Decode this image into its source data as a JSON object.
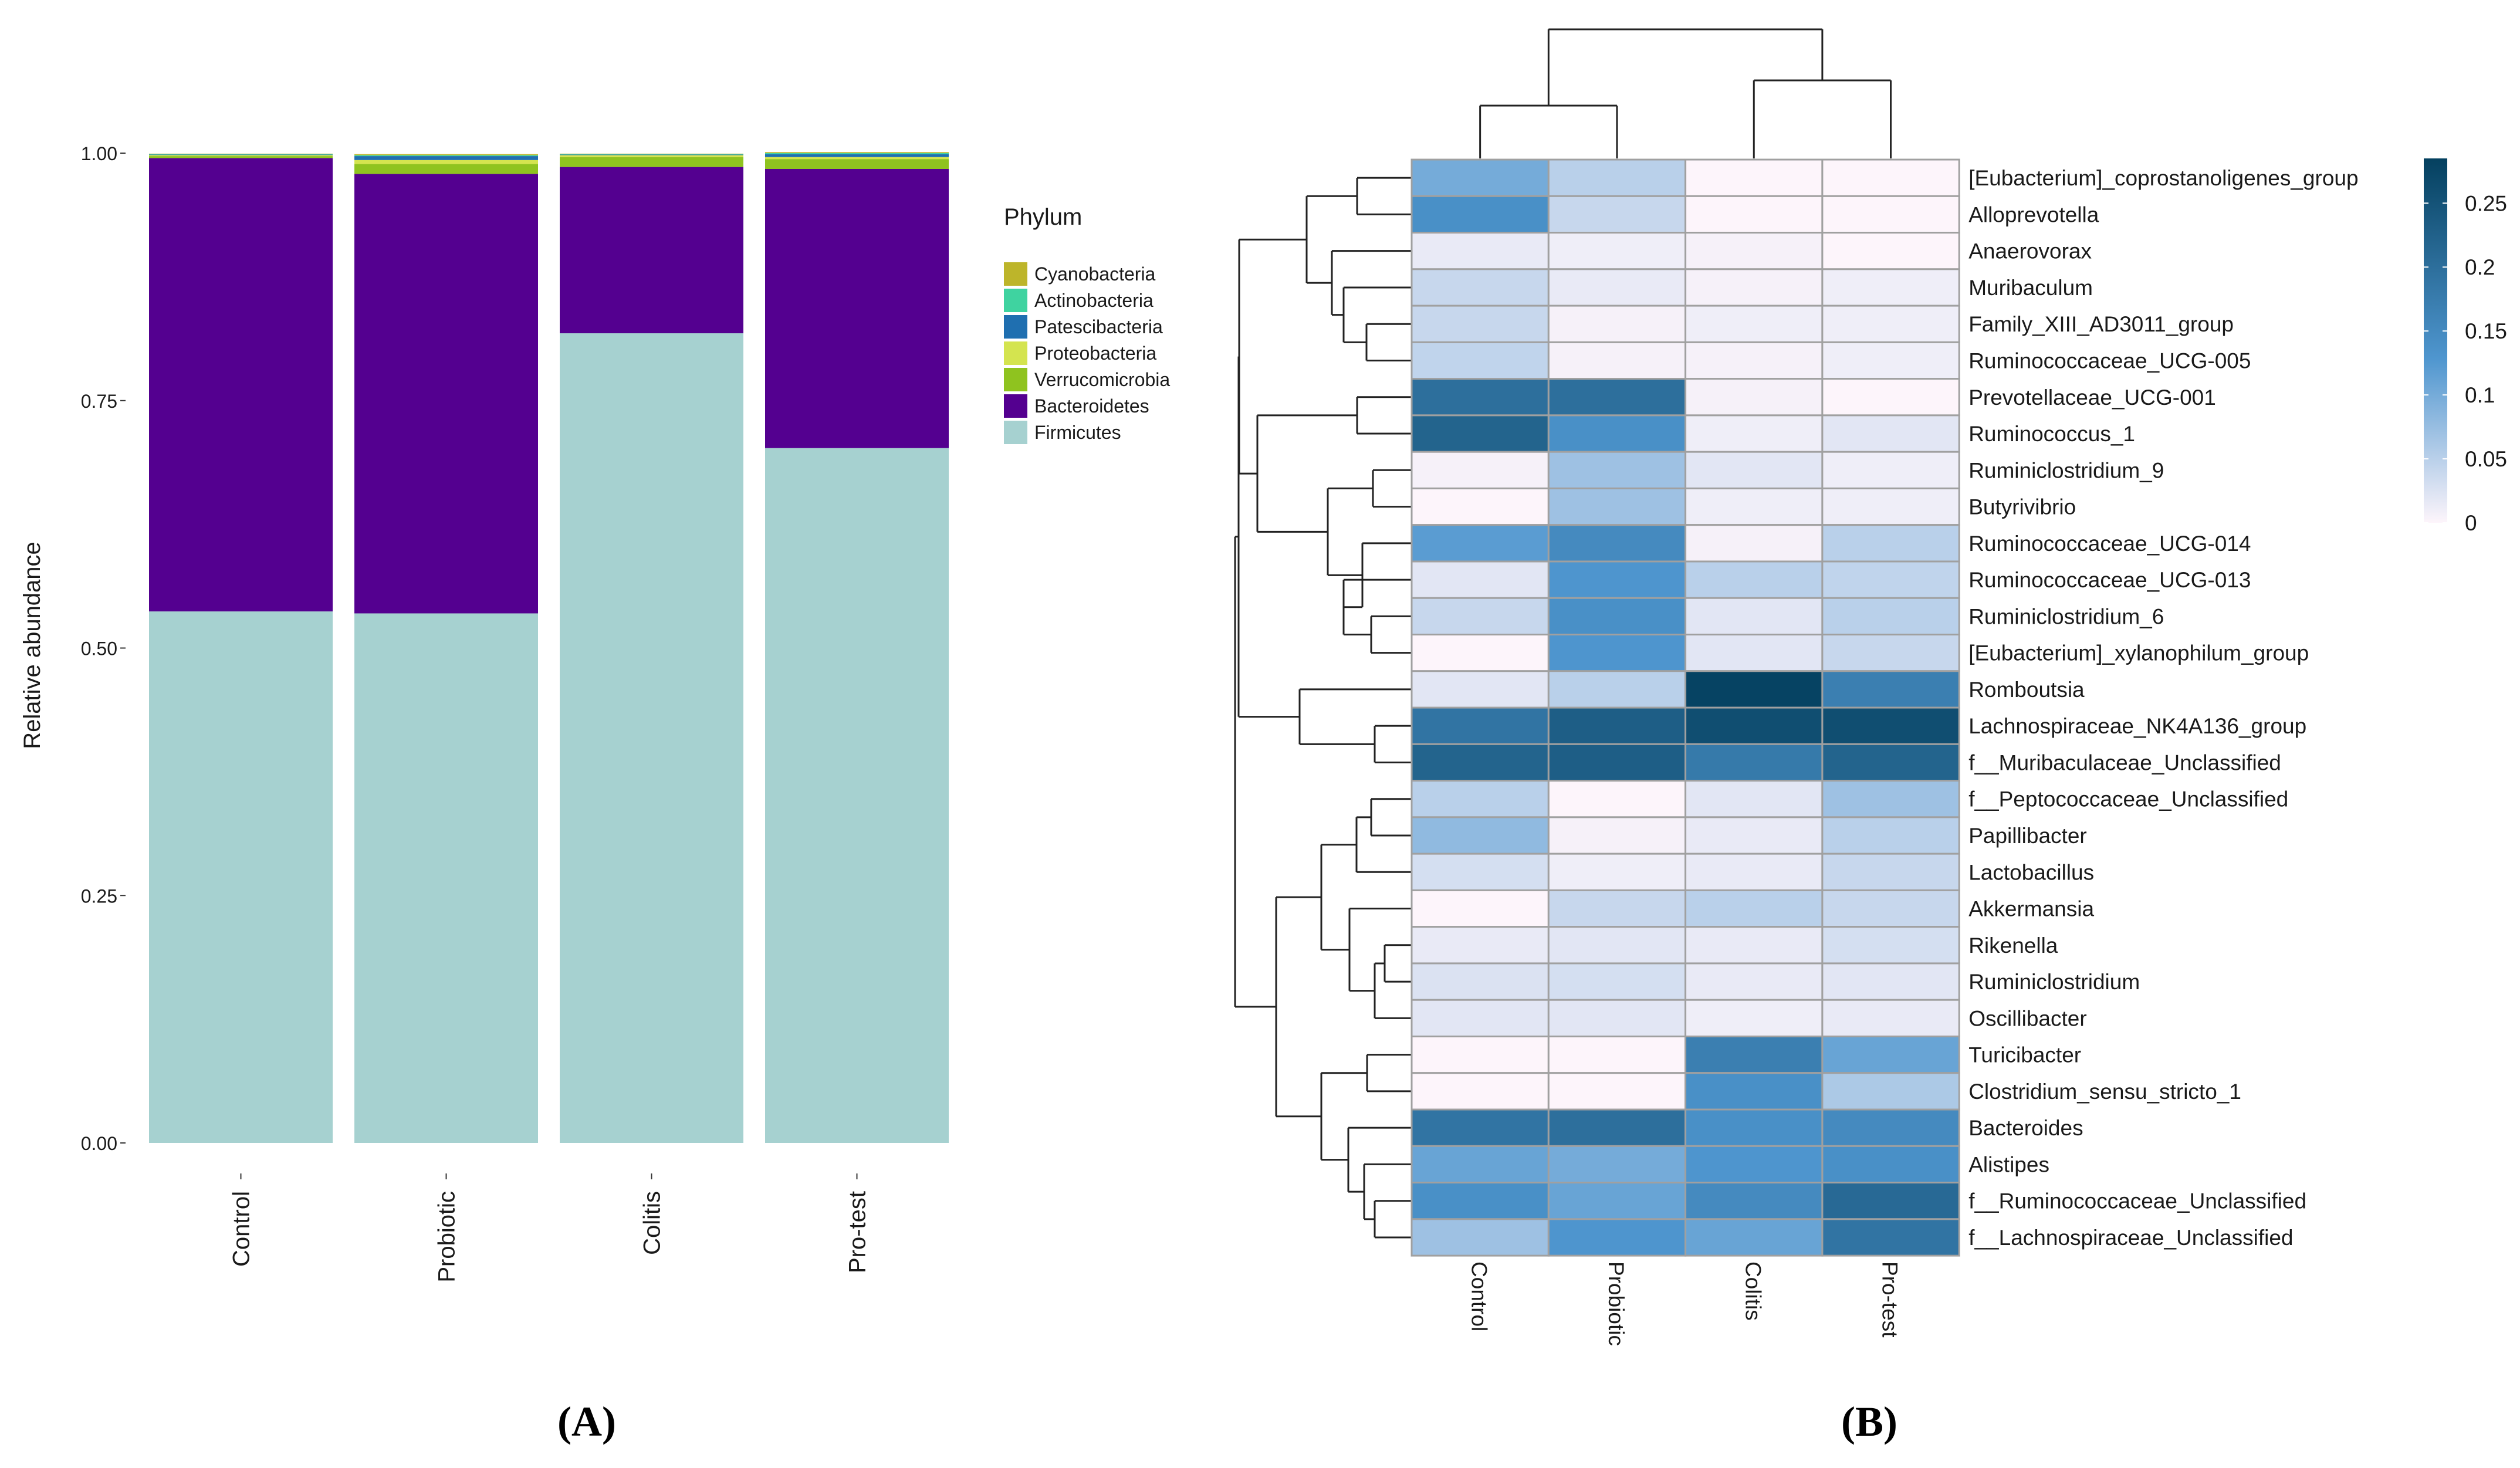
{
  "panel_labels": [
    "(A)",
    "(B)"
  ],
  "chart_data": [
    {
      "type": "bar",
      "stacked": true,
      "title": "",
      "xlabel": "",
      "ylabel": "Relative abundance",
      "ylim": [
        0,
        1
      ],
      "yticks": [
        "0.00",
        "0.25",
        "0.50",
        "0.75",
        "1.00"
      ],
      "categories": [
        "Control",
        "Probiotic",
        "Colitis",
        "Pro-test"
      ],
      "legend_title": "Phylum",
      "legend_position": "right",
      "series": [
        {
          "name": "Firmicutes",
          "color": "#a6d1d0",
          "values": [
            0.537,
            0.535,
            0.818,
            0.702
          ]
        },
        {
          "name": "Bacteroidetes",
          "color": "#540090",
          "values": [
            0.458,
            0.444,
            0.168,
            0.282
          ]
        },
        {
          "name": "Verrucomicrobia",
          "color": "#8fc31f",
          "values": [
            0.002,
            0.01,
            0.01,
            0.01
          ]
        },
        {
          "name": "Proteobacteria",
          "color": "#d4e44f",
          "values": [
            0.001,
            0.004,
            0.002,
            0.002
          ]
        },
        {
          "name": "Patescibacteria",
          "color": "#1f6fb0",
          "values": [
            0.0005,
            0.004,
            0.0005,
            0.003
          ]
        },
        {
          "name": "Actinobacteria",
          "color": "#3fd3a0",
          "values": [
            0.0005,
            0.001,
            0.0005,
            0.001
          ]
        },
        {
          "name": "Cyanobacteria",
          "color": "#bdb52a",
          "values": [
            0.0005,
            0.001,
            0.0005,
            0.001
          ]
        }
      ],
      "legend_order": [
        "Cyanobacteria",
        "Actinobacteria",
        "Patescibacteria",
        "Proteobacteria",
        "Verrucomicrobia",
        "Bacteroidetes",
        "Firmicutes"
      ]
    },
    {
      "type": "heatmap",
      "title": "",
      "columns": [
        "Control",
        "Probiotic",
        "Colitis",
        "Pro-test"
      ],
      "rows": [
        "[Eubacterium]_coprostanoligenes_group",
        "Alloprevotella",
        "Anaerovorax",
        "Muribaculum",
        "Family_XIII_AD3011_group",
        "Ruminococcaceae_UCG-005",
        "Prevotellaceae_UCG-001",
        "Ruminococcus_1",
        "Ruminiclostridium_9",
        "Butyrivibrio",
        "Ruminococcaceae_UCG-014",
        "Ruminococcaceae_UCG-013",
        "Ruminiclostridium_6",
        "[Eubacterium]_xylanophilum_group",
        "Romboutsia",
        "Lachnospiraceae_NK4A136_group",
        "f__Muribaculaceae_Unclassified",
        "f__Peptococcaceae_Unclassified",
        "Papillibacter",
        "Lactobacillus",
        "Akkermansia",
        "Rikenella",
        "Ruminiclostridium",
        "Oscillibacter",
        "Turicibacter",
        "Clostridium_sensu_stricto_1",
        "Bacteroides",
        "Alistipes",
        "f__Ruminococcaceae_Unclassified",
        "f__Lachnospiraceae_Unclassified"
      ],
      "values": [
        [
          0.1,
          0.05,
          0.0,
          0.0
        ],
        [
          0.14,
          0.04,
          0.0,
          0.0
        ],
        [
          0.015,
          0.01,
          0.005,
          0.0
        ],
        [
          0.04,
          0.015,
          0.005,
          0.01
        ],
        [
          0.04,
          0.005,
          0.01,
          0.01
        ],
        [
          0.045,
          0.005,
          0.005,
          0.01
        ],
        [
          0.2,
          0.2,
          0.005,
          0.0
        ],
        [
          0.22,
          0.14,
          0.01,
          0.02
        ],
        [
          0.005,
          0.07,
          0.02,
          0.01
        ],
        [
          0.0,
          0.07,
          0.01,
          0.01
        ],
        [
          0.12,
          0.15,
          0.005,
          0.05
        ],
        [
          0.02,
          0.13,
          0.05,
          0.045
        ],
        [
          0.04,
          0.14,
          0.02,
          0.05
        ],
        [
          0.0,
          0.13,
          0.02,
          0.04
        ],
        [
          0.02,
          0.05,
          0.28,
          0.17
        ],
        [
          0.19,
          0.23,
          0.26,
          0.26
        ],
        [
          0.22,
          0.23,
          0.18,
          0.22
        ],
        [
          0.05,
          0.0,
          0.02,
          0.07
        ],
        [
          0.08,
          0.005,
          0.015,
          0.05
        ],
        [
          0.03,
          0.01,
          0.015,
          0.04
        ],
        [
          0.0,
          0.04,
          0.05,
          0.04
        ],
        [
          0.015,
          0.02,
          0.015,
          0.03
        ],
        [
          0.025,
          0.03,
          0.015,
          0.02
        ],
        [
          0.02,
          0.02,
          0.01,
          0.015
        ],
        [
          0.0,
          0.0,
          0.17,
          0.11
        ],
        [
          0.0,
          0.0,
          0.14,
          0.06
        ],
        [
          0.19,
          0.2,
          0.14,
          0.15
        ],
        [
          0.11,
          0.1,
          0.13,
          0.14
        ],
        [
          0.14,
          0.11,
          0.15,
          0.21
        ],
        [
          0.07,
          0.13,
          0.11,
          0.19
        ]
      ],
      "colorbar": {
        "range": [
          0,
          0.285
        ],
        "ticks": [
          0,
          0.05,
          0.1,
          0.15,
          0.2,
          0.25
        ],
        "tick_labels": [
          "0",
          "0.05",
          "0.1",
          "0.15",
          "0.2",
          "0.25"
        ],
        "low_color": "#fdf5fb",
        "mid_color": "#4f96cf",
        "high_color": "#04405f"
      }
    }
  ]
}
